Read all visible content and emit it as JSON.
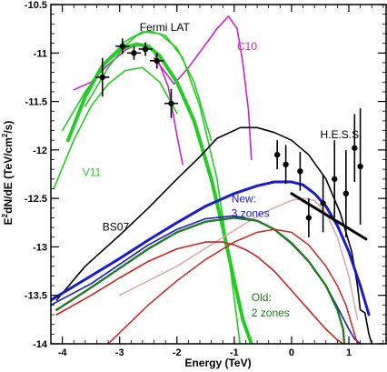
{
  "chart_data": {
    "type": "line",
    "title": "",
    "xlabel": "Energy (TeV)",
    "ylabel": "E²dN/dE (TeV/cm²/s)",
    "ylabel_main": "E",
    "ylabel_sup1": "2",
    "ylabel_mid": "dN/dE (TeV/cm",
    "ylabel_sup2": "2",
    "ylabel_end": "/s)",
    "xlim": [
      -4.2,
      1.65
    ],
    "ylim": [
      -14.0,
      -10.5
    ],
    "xticks": [
      -4,
      -3,
      -2,
      -1,
      0,
      1
    ],
    "yticks": [
      -14,
      -13.5,
      -13,
      -12.5,
      -12,
      -11.5,
      -11,
      -10.5
    ],
    "grid": false,
    "annotations": [
      {
        "text": "Fermi LAT",
        "x": -2.65,
        "y": -10.77,
        "color": "#000000"
      },
      {
        "text": "C10",
        "x": -0.95,
        "y": -10.97,
        "color": "#cc22cc"
      },
      {
        "text": "H.E.S.S.",
        "x": 0.5,
        "y": -11.88,
        "color": "#000000"
      },
      {
        "text": "V11",
        "x": -3.65,
        "y": -12.27,
        "color": "#22cc22"
      },
      {
        "text": "BS07",
        "x": -3.3,
        "y": -12.83,
        "color": "#000000"
      },
      {
        "text": "New:",
        "x": -1.05,
        "y": -12.54,
        "color": "#1a1acc"
      },
      {
        "text": "3 zones",
        "x": -1.05,
        "y": -12.69,
        "color": "#1a1acc"
      },
      {
        "text": "Old:",
        "x": -0.7,
        "y": -13.56,
        "color": "#1f7a1f"
      },
      {
        "text": "2 zones",
        "x": -0.7,
        "y": -13.72,
        "color": "#1f7a1f"
      }
    ],
    "series": [
      {
        "color": "#cc22cc",
        "width": 1.6,
        "x": [
          -3.8,
          -3.5,
          -3.2,
          -2.9,
          -2.7,
          -2.5,
          -2.4,
          -2.3,
          -2.15,
          -2.0,
          -1.9
        ],
        "y": [
          -11.38,
          -11.3,
          -11.12,
          -10.97,
          -10.91,
          -10.93,
          -10.99,
          -11.12,
          -11.35,
          -11.85,
          -12.15
        ]
      },
      {
        "color": "#cc22cc",
        "width": 1.6,
        "x": [
          -2.4,
          -2.2,
          -2.05,
          -1.8,
          -1.55,
          -1.3,
          -1.1,
          -0.95,
          -0.85,
          -0.75,
          -0.7
        ],
        "y": [
          -11.05,
          -11.2,
          -11.32,
          -11.15,
          -10.95,
          -10.75,
          -10.62,
          -10.75,
          -11.1,
          -11.6,
          -12.1
        ]
      },
      {
        "color": "#22cc22",
        "width": 1.6,
        "x": [
          -4.15,
          -3.8,
          -3.5,
          -3.2,
          -2.9,
          -2.6,
          -2.3,
          -2.0
        ],
        "y": [
          -12.4,
          -11.9,
          -11.55,
          -11.32,
          -11.18,
          -11.15,
          -11.3,
          -11.62
        ]
      },
      {
        "color": "#22cc22",
        "width": 1.6,
        "x": [
          -4.0,
          -3.6,
          -3.2,
          -2.9,
          -2.6,
          -2.3,
          -2.0,
          -1.7,
          -1.4
        ],
        "y": [
          -11.8,
          -11.4,
          -11.08,
          -10.88,
          -10.78,
          -10.8,
          -10.95,
          -11.3,
          -11.9
        ]
      },
      {
        "color": "#22cc22",
        "width": 1.6,
        "x": [
          -3.6,
          -3.2,
          -2.9,
          -2.7,
          -2.5,
          -2.2,
          -1.9,
          -1.6,
          -1.3,
          -1.05,
          -0.9
        ],
        "y": [
          -11.55,
          -11.15,
          -10.92,
          -10.82,
          -10.77,
          -10.82,
          -11.05,
          -11.55,
          -12.3,
          -13.3,
          -14.0
        ]
      },
      {
        "color": "#22cc22",
        "width": 4,
        "x": [
          -3.9,
          -3.6,
          -3.3,
          -3.0,
          -2.7,
          -2.5,
          -2.3,
          -2.0,
          -1.7,
          -1.4,
          -1.2,
          -1.0,
          -0.85,
          -0.7
        ],
        "y": [
          -11.9,
          -11.45,
          -11.13,
          -10.96,
          -10.91,
          -10.93,
          -11.03,
          -11.3,
          -11.7,
          -12.3,
          -12.8,
          -13.35,
          -13.75,
          -14.0
        ]
      },
      {
        "color": "#000000",
        "width": 1.6,
        "x": [
          -4.1,
          -3.6,
          -3.0,
          -2.5,
          -2.0,
          -1.6,
          -1.3,
          -1.0,
          -0.9,
          -0.6,
          -0.3,
          0.0,
          0.3,
          0.6,
          0.85,
          1.05,
          1.15,
          1.2,
          1.28,
          1.35,
          1.4
        ],
        "y": [
          -13.55,
          -13.2,
          -12.88,
          -12.6,
          -12.3,
          -12.07,
          -11.88,
          -11.8,
          -11.77,
          -11.77,
          -11.82,
          -11.9,
          -12.05,
          -12.3,
          -12.65,
          -13.05,
          -13.4,
          -13.65,
          -13.68,
          -13.9,
          -14.0
        ]
      },
      {
        "color": "#ddaaaa",
        "width": 1.6,
        "x": [
          -3.0,
          -2.0,
          -1.0,
          -0.5,
          0.0,
          0.2,
          0.4,
          0.6,
          0.8,
          1.0,
          1.15
        ],
        "y": [
          -13.5,
          -13.2,
          -12.83,
          -12.65,
          -12.52,
          -12.5,
          -12.52,
          -12.65,
          -12.9,
          -13.3,
          -13.75
        ]
      },
      {
        "color": "#1a1acc",
        "width": 1.6,
        "x": [
          -4.2,
          -3.5,
          -3.0,
          -2.5,
          -2.0,
          -1.5,
          -1.0,
          -0.6,
          -0.3,
          0.0,
          0.3,
          0.6,
          0.8,
          1.0,
          1.1,
          1.2
        ],
        "y": [
          -13.6,
          -13.38,
          -13.18,
          -12.98,
          -12.82,
          -12.71,
          -12.68,
          -12.73,
          -12.82,
          -12.97,
          -13.15,
          -13.4,
          -13.62,
          -13.85,
          -13.95,
          -14.0
        ]
      },
      {
        "color": "#1f7a1f",
        "width": 2.4,
        "dashed": true,
        "x": [
          -4.1,
          -3.5,
          -3.0,
          -2.5,
          -2.0,
          -1.5,
          -1.0,
          -0.6,
          -0.3,
          0.0,
          0.3,
          0.6,
          0.8,
          0.9,
          0.92
        ],
        "y": [
          -13.65,
          -13.42,
          -13.22,
          -13.02,
          -12.85,
          -12.74,
          -12.7,
          -12.73,
          -12.82,
          -12.96,
          -13.15,
          -13.4,
          -13.65,
          -13.85,
          -14.0
        ]
      },
      {
        "color": "#cc2222",
        "width": 1.6,
        "dashed": true,
        "x": [
          -3.2,
          -2.5,
          -2.0,
          -1.5,
          -1.0,
          -0.6,
          -0.3,
          0.0,
          0.3,
          0.6,
          0.8,
          0.95,
          1.05,
          1.15
        ],
        "y": [
          -14.0,
          -13.6,
          -13.35,
          -13.13,
          -12.95,
          -12.85,
          -12.82,
          -12.85,
          -12.98,
          -13.2,
          -13.4,
          -13.6,
          -13.8,
          -14.0
        ]
      },
      {
        "color": "#cc2222",
        "width": 1.6,
        "x": [
          -4.1,
          -3.5,
          -3.0,
          -2.5,
          -2.0,
          -1.5,
          -1.2,
          -1.0,
          -0.8,
          -0.6,
          -0.3,
          0.0,
          0.3,
          0.6,
          0.8,
          0.9,
          0.95
        ],
        "y": [
          -13.7,
          -13.5,
          -13.32,
          -13.15,
          -13.02,
          -12.95,
          -12.95,
          -12.98,
          -13.03,
          -13.1,
          -13.25,
          -13.45,
          -13.65,
          -13.85,
          -13.96,
          -14.0,
          -14.05
        ]
      },
      {
        "color": "#1a1acc",
        "width": 3,
        "x": [
          -4.2,
          -3.5,
          -3.0,
          -2.5,
          -2.0,
          -1.5,
          -1.0,
          -0.6,
          -0.3,
          0.0,
          0.2,
          0.4,
          0.6,
          0.8,
          1.0,
          1.2,
          1.35
        ],
        "y": [
          -13.55,
          -13.3,
          -13.12,
          -12.93,
          -12.75,
          -12.58,
          -12.45,
          -12.37,
          -12.33,
          -12.33,
          -12.36,
          -12.45,
          -12.58,
          -12.78,
          -13.05,
          -13.4,
          -13.7
        ]
      },
      {
        "color": "#000000",
        "width": 3,
        "x": [
          0.0,
          1.3
        ],
        "y": [
          -12.45,
          -12.92
        ]
      }
    ],
    "fermi_points": {
      "x": [
        -3.3,
        -2.95,
        -2.75,
        -2.55,
        -2.35,
        -2.1
      ],
      "y": [
        -11.25,
        -10.93,
        -11.0,
        -10.96,
        -11.08,
        -11.52
      ],
      "yerr": [
        0.2,
        0.08,
        0.07,
        0.07,
        0.08,
        0.15
      ],
      "xerr": [
        0.12,
        0.12,
        0.12,
        0.12,
        0.12,
        0.12
      ]
    },
    "hess_points": {
      "x": [
        -0.25,
        -0.1,
        0.15,
        0.3,
        0.55,
        0.75,
        0.95,
        1.1,
        1.2
      ],
      "y": [
        -12.05,
        -12.15,
        -12.22,
        -12.7,
        -12.55,
        -12.3,
        -12.45,
        -11.98,
        -12.17
      ],
      "yerr": [
        0.15,
        0.2,
        0.2,
        0.2,
        0.3,
        0.4,
        0.45,
        0.35,
        0.6
      ]
    }
  }
}
